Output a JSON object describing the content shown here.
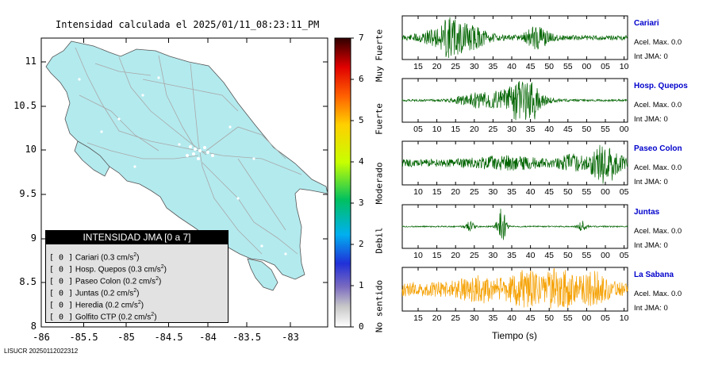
{
  "map": {
    "title": "Intensidad calculada el 2025/01/11_08:23:11_PM",
    "x_ticks": [
      "-86",
      "-85.5",
      "-85",
      "-84.5",
      "-84",
      "-83.5",
      "-83"
    ],
    "y_ticks": [
      "11",
      "10.5",
      "10",
      "9.5",
      "9",
      "8.5",
      "8"
    ],
    "land_color": "#b3eaee",
    "sea_color": "#ffffff"
  },
  "legend": {
    "title": "INTENSIDAD JMA [0 a 7]",
    "items": [
      {
        "level": "[ 0 ]",
        "name": "Cariari",
        "accel": "(0.3 cm/s",
        "sup": "2",
        ")": ")"
      },
      {
        "level": "[ 0 ]",
        "name": "Hosp. Quepos",
        "accel": "(0.3 cm/s",
        "sup": "2",
        ")": ")"
      },
      {
        "level": "[ 0 ]",
        "name": "Paseo Colon",
        "accel": "(0.2 cm/s",
        "sup": "2",
        ")": ")"
      },
      {
        "level": "[ 0 ]",
        "name": "Juntas",
        "accel": "(0.2 cm/s",
        "sup": "2",
        ")": ")"
      },
      {
        "level": "[ 0 ]",
        "name": "Heredia",
        "accel": "(0.2 cm/s",
        "sup": "2",
        ")": ")"
      },
      {
        "level": "[ 0 ]",
        "name": "Golfito CTP",
        "accel": "(0.2 cm/s",
        "sup": "2",
        ")": ")"
      }
    ]
  },
  "scale": {
    "ticks": [
      "0",
      "1",
      "2",
      "3",
      "4",
      "5",
      "6",
      "7"
    ],
    "labels": [
      "No sentido",
      "Debil",
      "Moderado",
      "Fuerte",
      "Muy Fuerte"
    ]
  },
  "stations": [
    {
      "name": "Cariari",
      "accel": "Acel. Max. 0.0",
      "int": "Int JMA: 0",
      "color": "#006400",
      "ticks": [
        "15",
        "20",
        "25",
        "30",
        "35",
        "40",
        "45",
        "50",
        "55",
        "00",
        "05",
        "10"
      ]
    },
    {
      "name": "Hosp. Quepos",
      "accel": "Acel. Max. 0.0",
      "int": "Int JMA: 0",
      "color": "#006400",
      "ticks": [
        "05",
        "10",
        "15",
        "20",
        "25",
        "30",
        "35",
        "40",
        "45",
        "50",
        "55",
        "00"
      ]
    },
    {
      "name": "Paseo Colon",
      "accel": "Acel. Max. 0.0",
      "int": "Int JMA: 0",
      "color": "#006400",
      "ticks": [
        "10",
        "15",
        "20",
        "25",
        "30",
        "35",
        "40",
        "45",
        "50",
        "55",
        "00",
        "05"
      ]
    },
    {
      "name": "Juntas",
      "accel": "Acel. Max. 0.0",
      "int": "Int JMA: 0",
      "color": "#006400",
      "ticks": [
        "10",
        "15",
        "20",
        "25",
        "30",
        "35",
        "40",
        "45",
        "50",
        "55",
        "00",
        "05"
      ]
    },
    {
      "name": "La Sabana",
      "accel": "Acel. Max. 0.0",
      "int": "Int JMA: 0",
      "color": "#f5a000",
      "ticks": [
        "15",
        "20",
        "25",
        "30",
        "35",
        "40",
        "45",
        "50",
        "55",
        "00",
        "05",
        "10"
      ]
    }
  ],
  "time_label": "Tiempo (s)",
  "footer": "LISUCR 20250112022312",
  "chart_data": {
    "type": "scatter",
    "title": "Intensidad calculada el 2025/01/11_08:23:11_PM",
    "xlim": [
      -86.3,
      -82.5
    ],
    "ylim": [
      8,
      11.3
    ],
    "colorbar": {
      "range": [
        0,
        7
      ],
      "label": "Intensidad JMA"
    }
  }
}
